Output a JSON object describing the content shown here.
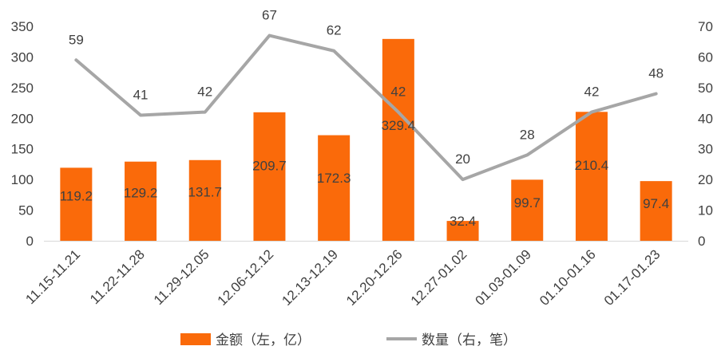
{
  "chart_data": {
    "type": "bar+line",
    "categories": [
      "11.15-11.21",
      "11.22-11.28",
      "11.29-12.05",
      "12.06-12.12",
      "12.13-12.19",
      "12.20-12.26",
      "12.27-01.02",
      "01.03-01.09",
      "01.10-01.16",
      "01.17-01.23"
    ],
    "series": [
      {
        "name": "金额（左，亿）",
        "type": "bar",
        "axis": "left",
        "color": "#FA6A0A",
        "values": [
          119.2,
          129.2,
          131.7,
          209.7,
          172.3,
          329.4,
          32.4,
          99.7,
          210.4,
          97.4
        ],
        "labels": [
          "119.2",
          "129.2",
          "131.7",
          "209.7",
          "172.3",
          "329.4",
          "32.4",
          "99.7",
          "210.4",
          "97.4"
        ]
      },
      {
        "name": "数量（右，笔）",
        "type": "line",
        "axis": "right",
        "color": "#A6A6A6",
        "values": [
          59,
          41,
          42,
          67,
          62,
          42,
          20,
          28,
          42,
          48
        ],
        "labels": [
          "59",
          "41",
          "42",
          "67",
          "62",
          "42",
          "20",
          "28",
          "42",
          "48"
        ]
      }
    ],
    "left_axis": {
      "ylim": [
        0,
        350
      ],
      "ticks": [
        "0",
        "50",
        "100",
        "150",
        "200",
        "250",
        "300",
        "350"
      ]
    },
    "right_axis": {
      "ylim": [
        0,
        70
      ],
      "ticks": [
        "0",
        "10",
        "20",
        "30",
        "40",
        "50",
        "60",
        "70"
      ]
    },
    "grid": false,
    "legend_position": "bottom"
  }
}
